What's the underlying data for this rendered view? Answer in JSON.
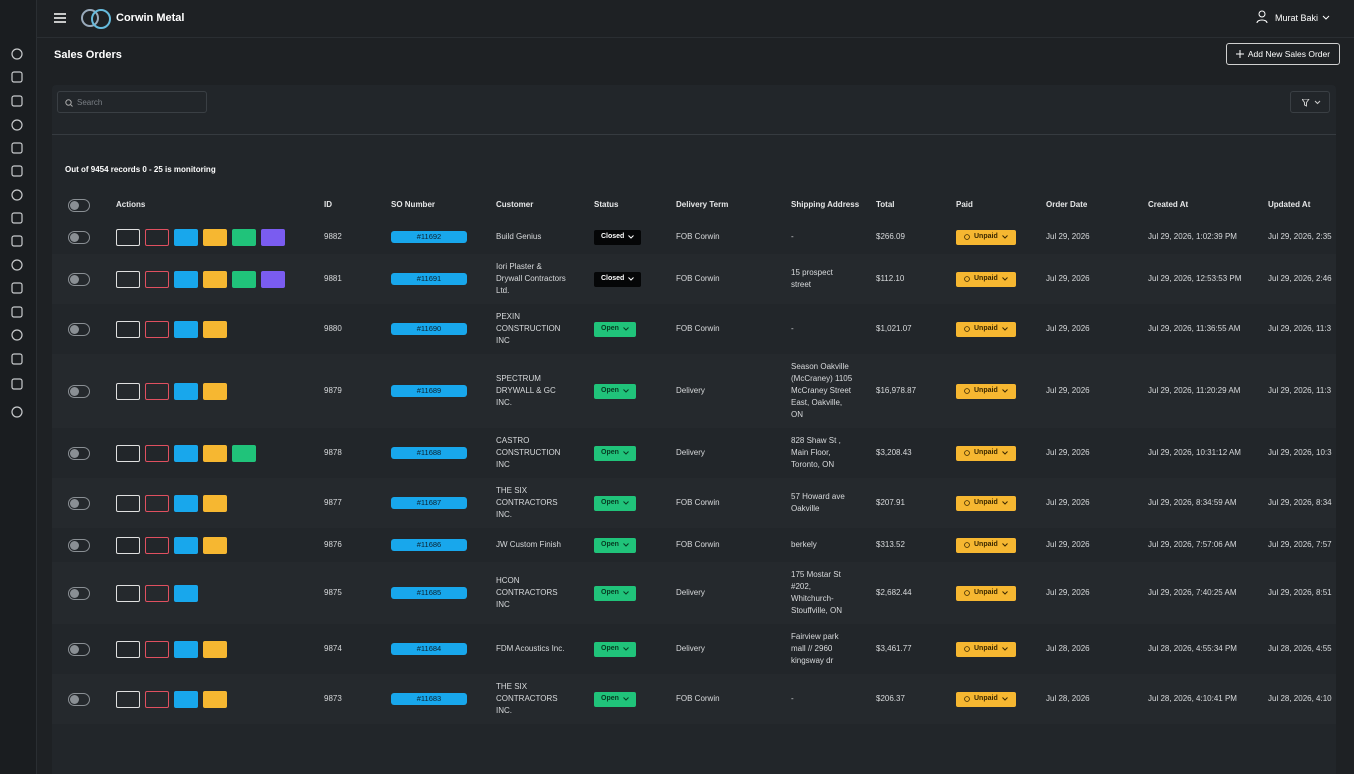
{
  "header": {
    "brand": "Corwin Metal",
    "user": "Murat Baki"
  },
  "page": {
    "title": "Sales Orders",
    "add_button": "Add New Sales Order",
    "search_placeholder": "Search",
    "records_info": "Out of 9454 records 0 - 25 is monitoring"
  },
  "table": {
    "columns": [
      "Actions",
      "ID",
      "SO Number",
      "Customer",
      "Status",
      "Delivery Term",
      "Shipping Address",
      "Total",
      "Paid",
      "Order Date",
      "Created At",
      "Updated At"
    ],
    "rows": [
      {
        "id": "9882",
        "so_number": "#11692",
        "customer": "Build Genius",
        "status": "Closed",
        "delivery_term": "FOB Corwin",
        "shipping_address": "-",
        "total": "$266.09",
        "paid": "Unpaid",
        "order_date": "Jul 29, 2026",
        "created_at": "Jul 29, 2026, 1:02:39 PM",
        "updated_at": "Jul 29, 2026, 2:35"
      },
      {
        "id": "9881",
        "so_number": "#11691",
        "customer": "Iori Plaster & Drywall Contractors Ltd.",
        "status": "Closed",
        "delivery_term": "FOB Corwin",
        "shipping_address": "15 prospect street",
        "total": "$112.10",
        "paid": "Unpaid",
        "order_date": "Jul 29, 2026",
        "created_at": "Jul 29, 2026, 12:53:53 PM",
        "updated_at": "Jul 29, 2026, 2:46"
      },
      {
        "id": "9880",
        "so_number": "#11690",
        "customer": "PEXIN CONSTRUCTION INC",
        "status": "Open",
        "delivery_term": "FOB Corwin",
        "shipping_address": "-",
        "total": "$1,021.07",
        "paid": "Unpaid",
        "order_date": "Jul 29, 2026",
        "created_at": "Jul 29, 2026, 11:36:55 AM",
        "updated_at": "Jul 29, 2026, 11:3"
      },
      {
        "id": "9879",
        "so_number": "#11689",
        "customer": "SPECTRUM DRYWALL & GC INC.",
        "status": "Open",
        "delivery_term": "Delivery",
        "shipping_address": "Season Oakville (McCraney) 1105 McCraney Street East, Oakville, ON",
        "total": "$16,978.87",
        "paid": "Unpaid",
        "order_date": "Jul 29, 2026",
        "created_at": "Jul 29, 2026, 11:20:29 AM",
        "updated_at": "Jul 29, 2026, 11:3"
      },
      {
        "id": "9878",
        "so_number": "#11688",
        "customer": "CASTRO CONSTRUCTION INC",
        "status": "Open",
        "delivery_term": "Delivery",
        "shipping_address": "828 Shaw St , Main Floor, Toronto, ON",
        "total": "$3,208.43",
        "paid": "Unpaid",
        "order_date": "Jul 29, 2026",
        "created_at": "Jul 29, 2026, 10:31:12 AM",
        "updated_at": "Jul 29, 2026, 10:3"
      },
      {
        "id": "9877",
        "so_number": "#11687",
        "customer": "THE SIX CONTRACTORS INC.",
        "status": "Open",
        "delivery_term": "FOB Corwin",
        "shipping_address": "57 Howard ave Oakville",
        "total": "$207.91",
        "paid": "Unpaid",
        "order_date": "Jul 29, 2026",
        "created_at": "Jul 29, 2026, 8:34:59 AM",
        "updated_at": "Jul 29, 2026, 8:34"
      },
      {
        "id": "9876",
        "so_number": "#11686",
        "customer": "JW Custom Finish",
        "status": "Open",
        "delivery_term": "FOB Corwin",
        "shipping_address": "berkely",
        "total": "$313.52",
        "paid": "Unpaid",
        "order_date": "Jul 29, 2026",
        "created_at": "Jul 29, 2026, 7:57:06 AM",
        "updated_at": "Jul 29, 2026, 7:57"
      },
      {
        "id": "9875",
        "so_number": "#11685",
        "customer": "HCON CONTRACTORS INC",
        "status": "Open",
        "delivery_term": "Delivery",
        "shipping_address": "175 Mostar St #202, Whitchurch-Stouffville, ON",
        "total": "$2,682.44",
        "paid": "Unpaid",
        "order_date": "Jul 29, 2026",
        "created_at": "Jul 29, 2026, 7:40:25 AM",
        "updated_at": "Jul 29, 2026, 8:51"
      },
      {
        "id": "9874",
        "so_number": "#11684",
        "customer": "FDM Acoustics Inc.",
        "status": "Open",
        "delivery_term": "Delivery",
        "shipping_address": "Fairview park mall // 2960 kingsway dr",
        "total": "$3,461.77",
        "paid": "Unpaid",
        "order_date": "Jul 28, 2026",
        "created_at": "Jul 28, 2026, 4:55:34 PM",
        "updated_at": "Jul 28, 2026, 4:55"
      },
      {
        "id": "9873",
        "so_number": "#11683",
        "customer": "THE SIX CONTRACTORS INC.",
        "status": "Open",
        "delivery_term": "FOB Corwin",
        "shipping_address": "-",
        "total": "$206.37",
        "paid": "Unpaid",
        "order_date": "Jul 28, 2026",
        "created_at": "Jul 28, 2026, 4:10:41 PM",
        "updated_at": "Jul 28, 2026, 4:10"
      }
    ]
  }
}
